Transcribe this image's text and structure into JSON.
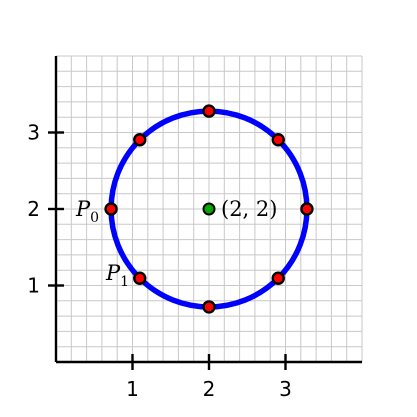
{
  "figure": {
    "x_range": [
      0,
      4
    ],
    "y_range": [
      0,
      4
    ],
    "grid_step": 0.2,
    "grid": true,
    "circle": {
      "center": [
        2,
        2
      ],
      "radius": 1.28,
      "color": "#0000ff"
    },
    "point_color": "#ff0000",
    "center_color": "#00aa00",
    "points": [
      {
        "angle_deg": 180
      },
      {
        "angle_deg": 225
      },
      {
        "angle_deg": 270
      },
      {
        "angle_deg": 315
      },
      {
        "angle_deg": 0
      },
      {
        "angle_deg": 45
      },
      {
        "angle_deg": 90
      },
      {
        "angle_deg": 135
      }
    ],
    "labels": {
      "p0_main": "P",
      "p0_sub": "0",
      "p1_main": "P",
      "p1_sub": "1",
      "center": "(2, 2)"
    }
  },
  "chart_data": {
    "type": "scatter",
    "xlim": [
      0,
      4
    ],
    "ylim": [
      0,
      4
    ],
    "x_ticks": [
      "1",
      "2",
      "3"
    ],
    "y_ticks": [
      "1",
      "2",
      "3"
    ],
    "series": [
      {
        "x": [
          0.72,
          1.09,
          2.0,
          2.91,
          3.28,
          2.91,
          2.0,
          1.09
        ],
        "y": [
          2.0,
          1.09,
          0.72,
          1.09,
          2.0,
          2.91,
          3.28,
          2.91
        ]
      }
    ]
  }
}
